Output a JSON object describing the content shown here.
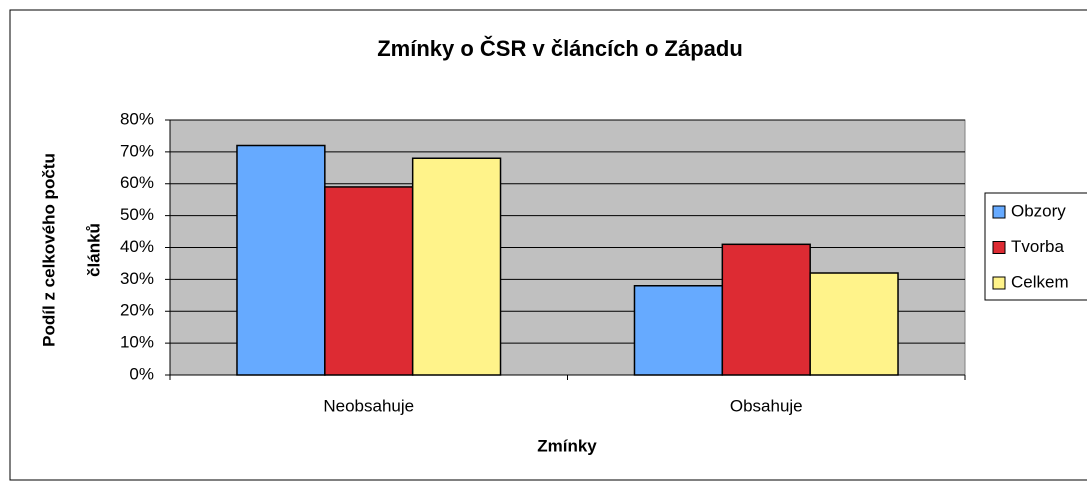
{
  "chart_data": {
    "type": "bar",
    "title": "Zmínky o ČSR v článcích o Západu",
    "xlabel": "Zmínky",
    "ylabel": [
      "Podíl z celkového počtu",
      "článků"
    ],
    "categories": [
      "Neobsahuje",
      "Obsahuje"
    ],
    "series": [
      {
        "name": "Obzory",
        "color": "#66aaff",
        "values": [
          72,
          28
        ]
      },
      {
        "name": "Tvorba",
        "color": "#dd2b33",
        "values": [
          59,
          41
        ]
      },
      {
        "name": "Celkem",
        "color": "#fff38a",
        "values": [
          68,
          32
        ]
      }
    ],
    "ylim": [
      0,
      80
    ],
    "yticks": [
      {
        "value": 0,
        "label": "0%"
      },
      {
        "value": 10,
        "label": "10%"
      },
      {
        "value": 20,
        "label": "20%"
      },
      {
        "value": 30,
        "label": "30%"
      },
      {
        "value": 40,
        "label": "40%"
      },
      {
        "value": 50,
        "label": "50%"
      },
      {
        "value": 60,
        "label": "60%"
      },
      {
        "value": 70,
        "label": "70%"
      },
      {
        "value": 80,
        "label": "80%"
      }
    ],
    "grid": true,
    "legend": "right"
  }
}
